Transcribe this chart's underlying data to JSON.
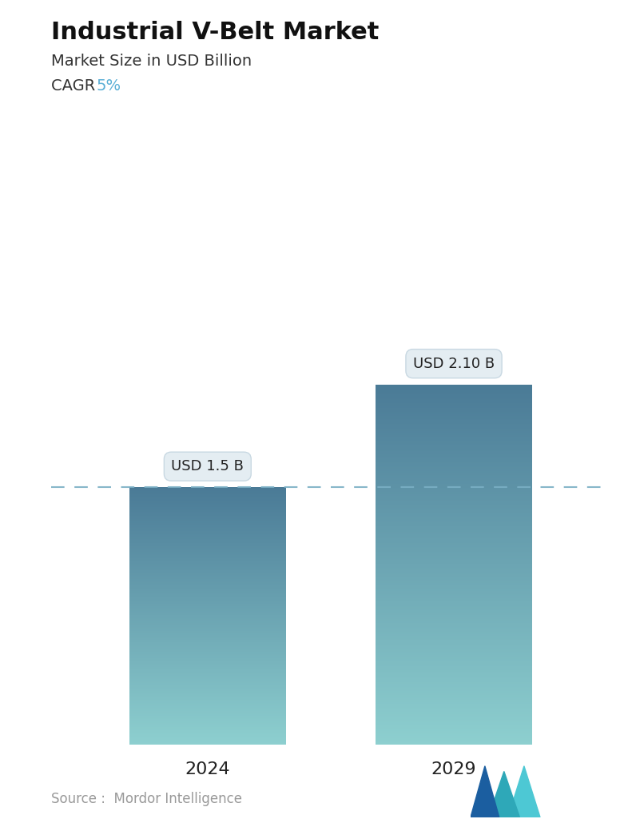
{
  "title": "Industrial V-Belt Market",
  "subtitle": "Market Size in USD Billion",
  "cagr_label": "CAGR ",
  "cagr_value": "5%",
  "cagr_color": "#5BAFD6",
  "years": [
    "2024",
    "2029"
  ],
  "values": [
    1.5,
    2.1
  ],
  "labels": [
    "USD 1.5 B",
    "USD 2.10 B"
  ],
  "bar_top_color": "#4A7A96",
  "bar_bottom_color": "#8DCFCF",
  "dashed_line_color": "#7AAFC5",
  "dashed_line_y": 1.5,
  "source_text": "Source :  Mordor Intelligence",
  "source_color": "#999999",
  "background_color": "#ffffff",
  "title_fontsize": 22,
  "subtitle_fontsize": 14,
  "cagr_fontsize": 14,
  "label_fontsize": 13,
  "tick_fontsize": 16,
  "source_fontsize": 12,
  "ylim": [
    0,
    2.8
  ],
  "bar_width": 0.28,
  "x_positions": [
    0.28,
    0.72
  ]
}
